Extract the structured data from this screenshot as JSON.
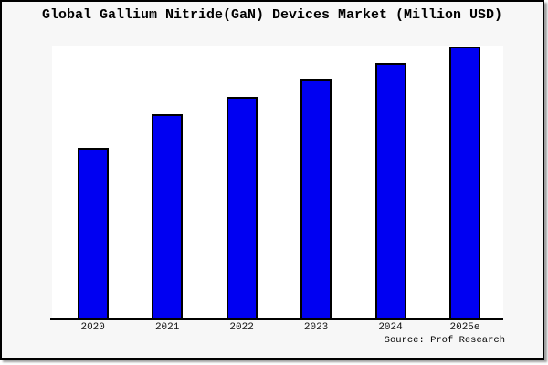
{
  "figure": {
    "title": "Global Gallium Nitride(GaN) Devices Market (Million USD)",
    "source_note": "Source: Prof Research",
    "colors": {
      "bar_fill": "#0000f2",
      "bar_border": "#000000",
      "figure_bg": "#f7f7f7",
      "plot_bg": "#ffffff",
      "axis": "#000000",
      "frame_border": "#000000",
      "text": "#000000"
    }
  },
  "chart_data": {
    "type": "bar",
    "title": "Global Gallium Nitride(GaN) Devices Market (Million USD)",
    "categories": [
      "2020",
      "2021",
      "2022",
      "2023",
      "2024",
      "2025e"
    ],
    "values": [
      62.8,
      75.2,
      81.5,
      87.9,
      94.0,
      100.0
    ],
    "value_basis": "relative units estimated from bar pixel heights, tallest bar (2025e) = 100; no y-axis scale shown in image",
    "xlabel": "",
    "ylabel": "",
    "ylim": [
      0,
      100.3
    ],
    "grid": false,
    "legend": "none",
    "annotations": [
      "Source: Prof Research"
    ]
  }
}
